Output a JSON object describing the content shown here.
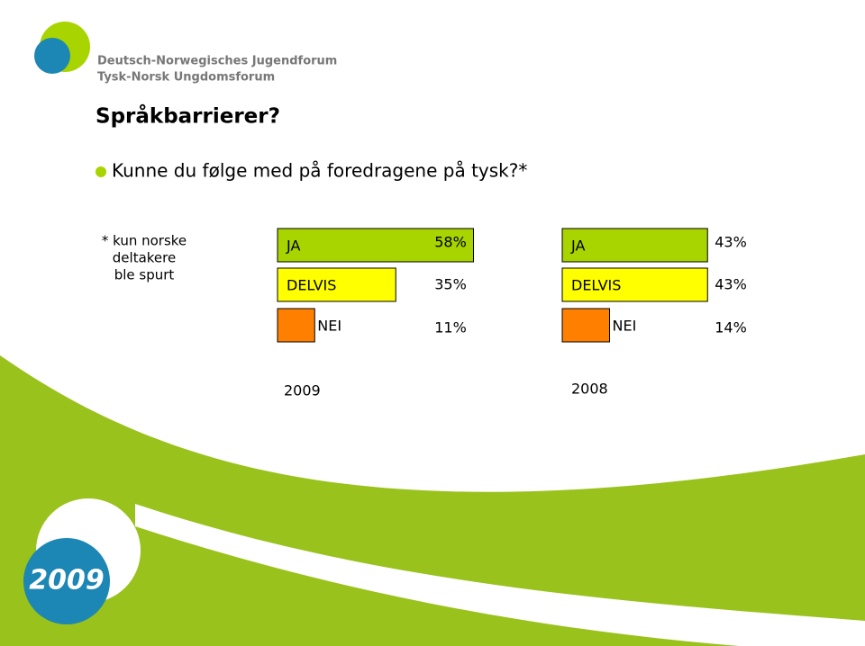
{
  "logo": {
    "line1": "Deutsch-Norwegisches Jugendforum",
    "line2": "Tysk-Norsk Ungdomsforum"
  },
  "title": "Språkbarrierer?",
  "question": "Kunne du følge med på foredragene på tysk?*",
  "footnote": [
    "* kun norske",
    "deltakere",
    "ble spurt"
  ],
  "badge": "2009",
  "chart_data": [
    {
      "type": "bar",
      "title": "2009",
      "categories": [
        "JA",
        "DELVIS",
        "NEI"
      ],
      "values": [
        58,
        35,
        11
      ],
      "value_labels": [
        "58%",
        "35%",
        "11%"
      ],
      "colors": [
        "#a8d400",
        "#ffff00",
        "#ff8000"
      ]
    },
    {
      "type": "bar",
      "title": "2008",
      "categories": [
        "JA",
        "DELVIS",
        "NEI"
      ],
      "values": [
        43,
        43,
        14
      ],
      "value_labels": [
        "43%",
        "43%",
        "14%"
      ],
      "colors": [
        "#a8d400",
        "#ffff00",
        "#ff8000"
      ]
    }
  ]
}
